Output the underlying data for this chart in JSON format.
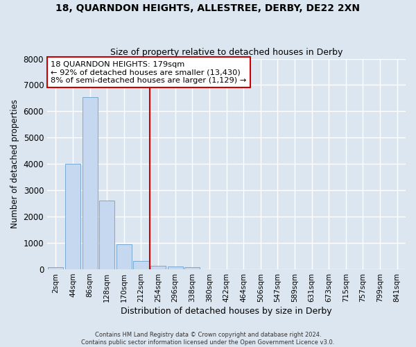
{
  "title_line1": "18, QUARNDON HEIGHTS, ALLESTREE, DERBY, DE22 2XN",
  "title_line2": "Size of property relative to detached houses in Derby",
  "xlabel": "Distribution of detached houses by size in Derby",
  "ylabel": "Number of detached properties",
  "footnote": "Contains HM Land Registry data © Crown copyright and database right 2024.\nContains public sector information licensed under the Open Government Licence v3.0.",
  "bar_labels": [
    "2sqm",
    "44sqm",
    "86sqm",
    "128sqm",
    "170sqm",
    "212sqm",
    "254sqm",
    "296sqm",
    "338sqm",
    "380sqm",
    "422sqm",
    "464sqm",
    "506sqm",
    "547sqm",
    "589sqm",
    "631sqm",
    "673sqm",
    "715sqm",
    "757sqm",
    "799sqm",
    "841sqm"
  ],
  "bar_values": [
    80,
    4000,
    6550,
    2620,
    960,
    310,
    130,
    110,
    80,
    0,
    0,
    0,
    0,
    0,
    0,
    0,
    0,
    0,
    0,
    0,
    0
  ],
  "bar_color": "#c5d8f0",
  "bar_edge_color": "#7aa8d0",
  "background_color": "#dce6f0",
  "grid_color": "#ffffff",
  "ylim": [
    0,
    8000
  ],
  "yticks": [
    0,
    1000,
    2000,
    3000,
    4000,
    5000,
    6000,
    7000,
    8000
  ],
  "annotation_text": "18 QUARNDON HEIGHTS: 179sqm\n← 92% of detached houses are smaller (13,430)\n8% of semi-detached houses are larger (1,129) →",
  "vline_x_index": 5.5,
  "vline_color": "#cc0000",
  "annotation_box_color": "#ffffff",
  "annotation_border_color": "#cc0000"
}
